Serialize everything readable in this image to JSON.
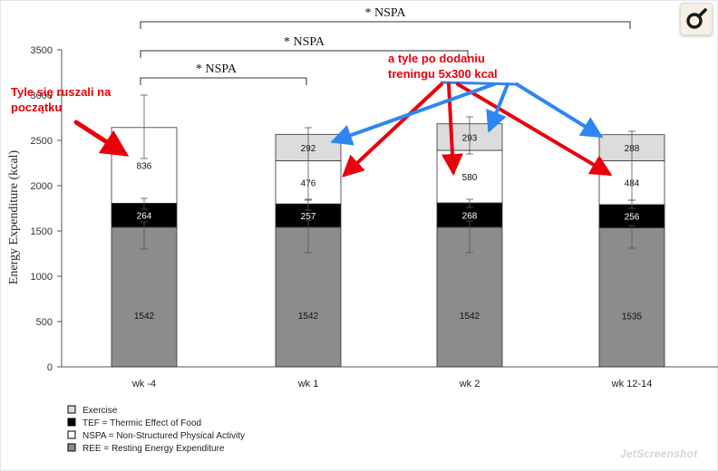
{
  "chart_data": {
    "type": "bar",
    "stacked": true,
    "ylabel": "Energy Expenditure (kcal)",
    "ylim": [
      0,
      3500
    ],
    "yticks": [
      0,
      500,
      1000,
      1500,
      2000,
      2500,
      3000,
      3500
    ],
    "categories": [
      "wk -4",
      "wk 1",
      "wk 2",
      "wk 12-14"
    ],
    "series": [
      {
        "name": "REE = Resting Energy Expenditure",
        "color": "#8c8c8c",
        "values": [
          1542,
          1542,
          1542,
          1535
        ]
      },
      {
        "name": "TEF = Thermic Effect of Food",
        "color": "#000000",
        "values": [
          264,
          257,
          268,
          256
        ]
      },
      {
        "name": "NSPA = Non-Structured Physical Activity",
        "color": "#ffffff",
        "values": [
          836,
          476,
          580,
          484
        ]
      },
      {
        "name": "Exercise",
        "color": "#dcdcdc",
        "values": [
          0,
          292,
          293,
          288
        ]
      }
    ],
    "error_bars": [
      {
        "low": 1300,
        "high": 1600
      },
      {
        "low": 1260,
        "high": 1620
      },
      {
        "low": 1260,
        "high": 1610
      },
      {
        "low": 1310,
        "high": 1560
      },
      {
        "low": 1740,
        "high": 1860
      },
      {
        "low": 1730,
        "high": 1850
      },
      {
        "low": 1760,
        "high": 1850
      },
      {
        "low": 1750,
        "high": 1840
      },
      {
        "low": 2300,
        "high": 3000
      },
      {
        "low": 1840,
        "high": 2640
      },
      {
        "low": 2350,
        "high": 2760
      },
      {
        "low": 1840,
        "high": 2600
      }
    ],
    "significance": [
      {
        "label": "* NSPA",
        "from": 0,
        "to": 1
      },
      {
        "label": "* NSPA",
        "from": 0,
        "to": 2
      },
      {
        "label": "* NSPA",
        "from": 0,
        "to": 3
      }
    ],
    "legend_position": "bottom-left",
    "legend_order": [
      3,
      1,
      2,
      0
    ],
    "grid": false
  },
  "annotations": {
    "start_note": [
      "Tyle się ruszali na",
      "początku"
    ],
    "after_note": [
      "a tyle po dodaniu",
      "treningu 5x300 kcal"
    ],
    "arrow_red": "#e8000b",
    "arrow_blue": "#2f86f0"
  },
  "watermark": "JetScreenshot",
  "logo_icon": "pen-tool-icon"
}
